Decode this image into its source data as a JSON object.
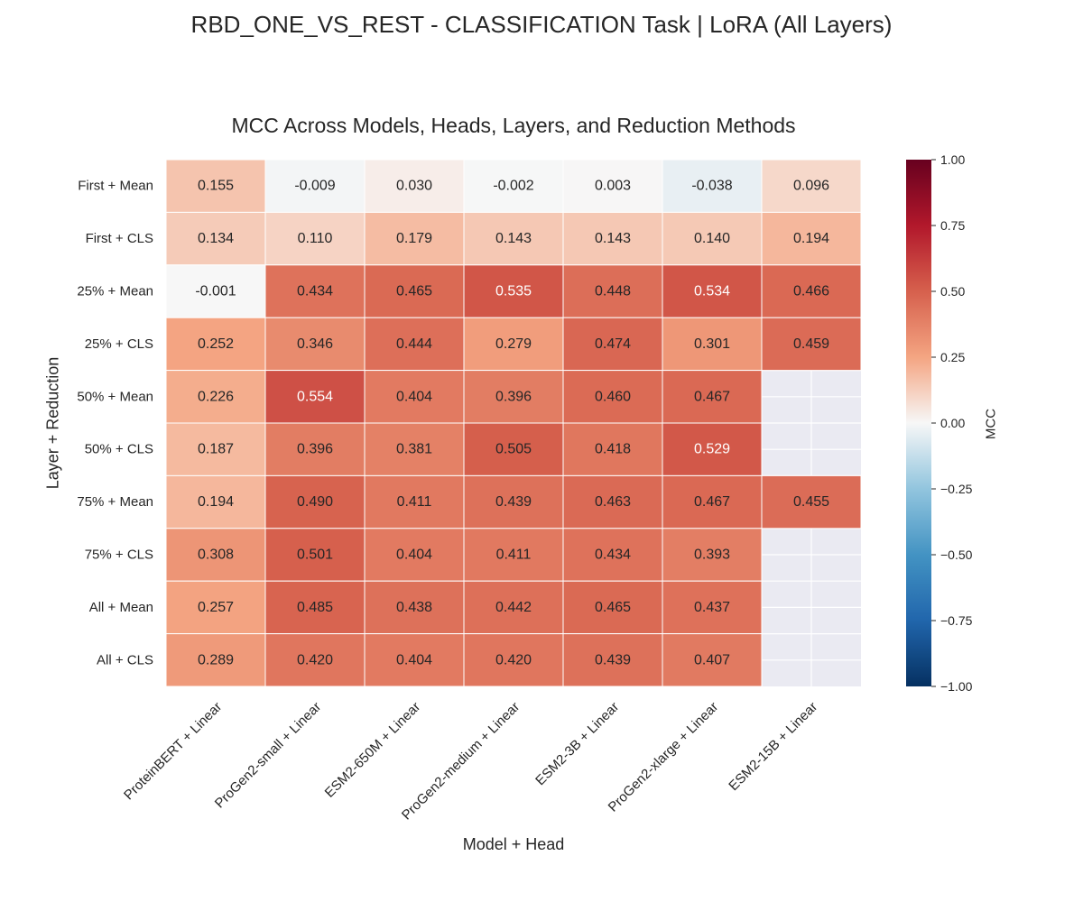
{
  "chart_data": {
    "type": "heatmap",
    "title": "RBD_ONE_VS_REST - CLASSIFICATION Task | LoRA (All Layers)",
    "subtitle": "MCC Across Models, Heads, Layers, and Reduction Methods",
    "xlabel": "Model + Head",
    "ylabel": "Layer + Reduction",
    "colorbar_label": "MCC",
    "colormap": "RdBu_r",
    "vmin": -1.0,
    "vmax": 1.0,
    "colorbar_ticks": [
      "1.00",
      "0.75",
      "0.50",
      "0.25",
      "0.00",
      "−0.25",
      "−0.50",
      "−0.75",
      "−1.00"
    ],
    "missing_color": "#eaeaf2",
    "columns": [
      "ProteinBERT + Linear",
      "ProGen2-small + Linear",
      "ESM2-650M + Linear",
      "ProGen2-medium + Linear",
      "ESM2-3B + Linear",
      "ProGen2-xlarge + Linear",
      "ESM2-15B + Linear"
    ],
    "rows": [
      "First + Mean",
      "First + CLS",
      "25% + Mean",
      "25% + CLS",
      "50% + Mean",
      "50% + CLS",
      "75% + Mean",
      "75% + CLS",
      "All + Mean",
      "All + CLS"
    ],
    "values": [
      [
        0.155,
        -0.009,
        0.03,
        -0.002,
        0.003,
        -0.038,
        0.096
      ],
      [
        0.134,
        0.11,
        0.179,
        0.143,
        0.143,
        0.14,
        0.194
      ],
      [
        -0.001,
        0.434,
        0.465,
        0.535,
        0.448,
        0.534,
        0.466
      ],
      [
        0.252,
        0.346,
        0.444,
        0.279,
        0.474,
        0.301,
        0.459
      ],
      [
        0.226,
        0.554,
        0.404,
        0.396,
        0.46,
        0.467,
        null
      ],
      [
        0.187,
        0.396,
        0.381,
        0.505,
        0.418,
        0.529,
        null
      ],
      [
        0.194,
        0.49,
        0.411,
        0.439,
        0.463,
        0.467,
        0.455
      ],
      [
        0.308,
        0.501,
        0.404,
        0.411,
        0.434,
        0.393,
        null
      ],
      [
        0.257,
        0.485,
        0.438,
        0.442,
        0.465,
        0.437,
        null
      ],
      [
        0.289,
        0.42,
        0.404,
        0.42,
        0.439,
        0.407,
        null
      ]
    ],
    "labels": [
      [
        "0.155",
        "-0.009",
        "0.030",
        "-0.002",
        "0.003",
        "-0.038",
        "0.096"
      ],
      [
        "0.134",
        "0.110",
        "0.179",
        "0.143",
        "0.143",
        "0.140",
        "0.194"
      ],
      [
        "-0.001",
        "0.434",
        "0.465",
        "0.535",
        "0.448",
        "0.534",
        "0.466"
      ],
      [
        "0.252",
        "0.346",
        "0.444",
        "0.279",
        "0.474",
        "0.301",
        "0.459"
      ],
      [
        "0.226",
        "0.554",
        "0.404",
        "0.396",
        "0.460",
        "0.467",
        ""
      ],
      [
        "0.187",
        "0.396",
        "0.381",
        "0.505",
        "0.418",
        "0.529",
        ""
      ],
      [
        "0.194",
        "0.490",
        "0.411",
        "0.439",
        "0.463",
        "0.467",
        "0.455"
      ],
      [
        "0.308",
        "0.501",
        "0.404",
        "0.411",
        "0.434",
        "0.393",
        ""
      ],
      [
        "0.257",
        "0.485",
        "0.438",
        "0.442",
        "0.465",
        "0.437",
        ""
      ],
      [
        "0.289",
        "0.420",
        "0.404",
        "0.420",
        "0.439",
        "0.407",
        ""
      ]
    ]
  }
}
